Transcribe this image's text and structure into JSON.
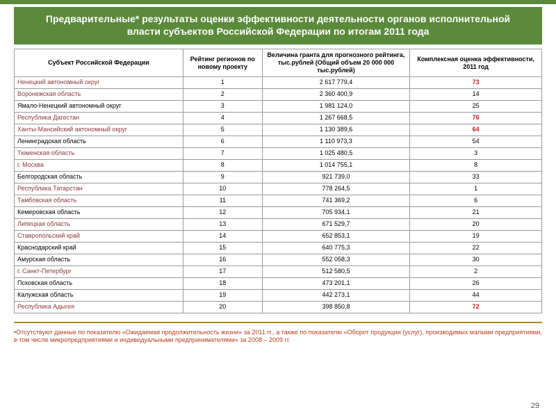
{
  "title": "Предварительные* результаты оценки эффективности деятельности органов исполнительной власти субъектов Российской Федерации по итогам 2011 года",
  "columns": {
    "subject": "Субъект Российской Федерации",
    "rating": "Рейтинг регионов по новому проекту",
    "grant": "Величина гранта для прогнозного рейтинга, тыс.рублей (Общий объем 20 000 000 тыс.рублей)",
    "score": "Комплексная оценка эффективности, 2011 год"
  },
  "rows": [
    {
      "subject": "Ненецкий автономный округ",
      "rating": "1",
      "grant": "2 617 779,4",
      "score": "73",
      "dark": true,
      "red": true
    },
    {
      "subject": "Воронежская область",
      "rating": "2",
      "grant": "2 360 400,9",
      "score": "14",
      "dark": true,
      "red": false
    },
    {
      "subject": "Ямало-Ненецкий автономный округ",
      "rating": "3",
      "grant": "1 981 124,0",
      "score": "25",
      "dark": false,
      "red": false
    },
    {
      "subject": "Республика Дагестан",
      "rating": "4",
      "grant": "1 267 668,5",
      "score": "76",
      "dark": true,
      "red": true
    },
    {
      "subject": "Ханты-Мансийский автономный округ",
      "rating": "5",
      "grant": "1 130 389,6",
      "score": "64",
      "dark": true,
      "red": true
    },
    {
      "subject": "Ленинградская область",
      "rating": "6",
      "grant": "1 110 973,3",
      "score": "54",
      "dark": false,
      "red": false
    },
    {
      "subject": "Тюменская область",
      "rating": "7",
      "grant": "1 025 480,5",
      "score": "3",
      "dark": true,
      "red": false
    },
    {
      "subject": "г. Москва",
      "rating": "8",
      "grant": "1 014 755,1",
      "score": "8",
      "dark": true,
      "red": false
    },
    {
      "subject": "Белгородская область",
      "rating": "9",
      "grant": "921 739,0",
      "score": "33",
      "dark": false,
      "red": false
    },
    {
      "subject": "Республика Татарстан",
      "rating": "10",
      "grant": "778 264,5",
      "score": "1",
      "dark": true,
      "red": false
    },
    {
      "subject": "Тамбовская область",
      "rating": "11",
      "grant": "741 369,2",
      "score": "6",
      "dark": true,
      "red": false
    },
    {
      "subject": "Кемеровская область",
      "rating": "12",
      "grant": "705 934,1",
      "score": "21",
      "dark": false,
      "red": false
    },
    {
      "subject": "Липецкая область",
      "rating": "13",
      "grant": "671 529,7",
      "score": "20",
      "dark": true,
      "red": false
    },
    {
      "subject": "Ставропольский край",
      "rating": "14",
      "grant": "652 853,1",
      "score": "19",
      "dark": true,
      "red": false
    },
    {
      "subject": "Краснодарский край",
      "rating": "15",
      "grant": "640 775,3",
      "score": "22",
      "dark": false,
      "red": false
    },
    {
      "subject": "Амурская область",
      "rating": "16",
      "grant": "552 058,3",
      "score": "30",
      "dark": false,
      "red": false
    },
    {
      "subject": "г. Санкт-Петербург",
      "rating": "17",
      "grant": "512 580,5",
      "score": "2",
      "dark": true,
      "red": false
    },
    {
      "subject": "Псковская область",
      "rating": "18",
      "grant": "473 201,1",
      "score": "26",
      "dark": false,
      "red": false
    },
    {
      "subject": "Калужская область",
      "rating": "19",
      "grant": "442 273,1",
      "score": "44",
      "dark": false,
      "red": false
    },
    {
      "subject": "Республика Адыгея",
      "rating": "20",
      "grant": "398 850,8",
      "score": "72",
      "dark": true,
      "red": true
    }
  ],
  "footnote": "•Отсутствуют данные по показателю «Ожидаемая продолжительность жизни» за 2011 гг., а также по показателю «Оборот продукции (услуг), производимых малыми предприятиями, в том числе микропредприятиями и индивидуальными предпринимателями» за 2008 – 2009 гг.",
  "page_number": "29"
}
